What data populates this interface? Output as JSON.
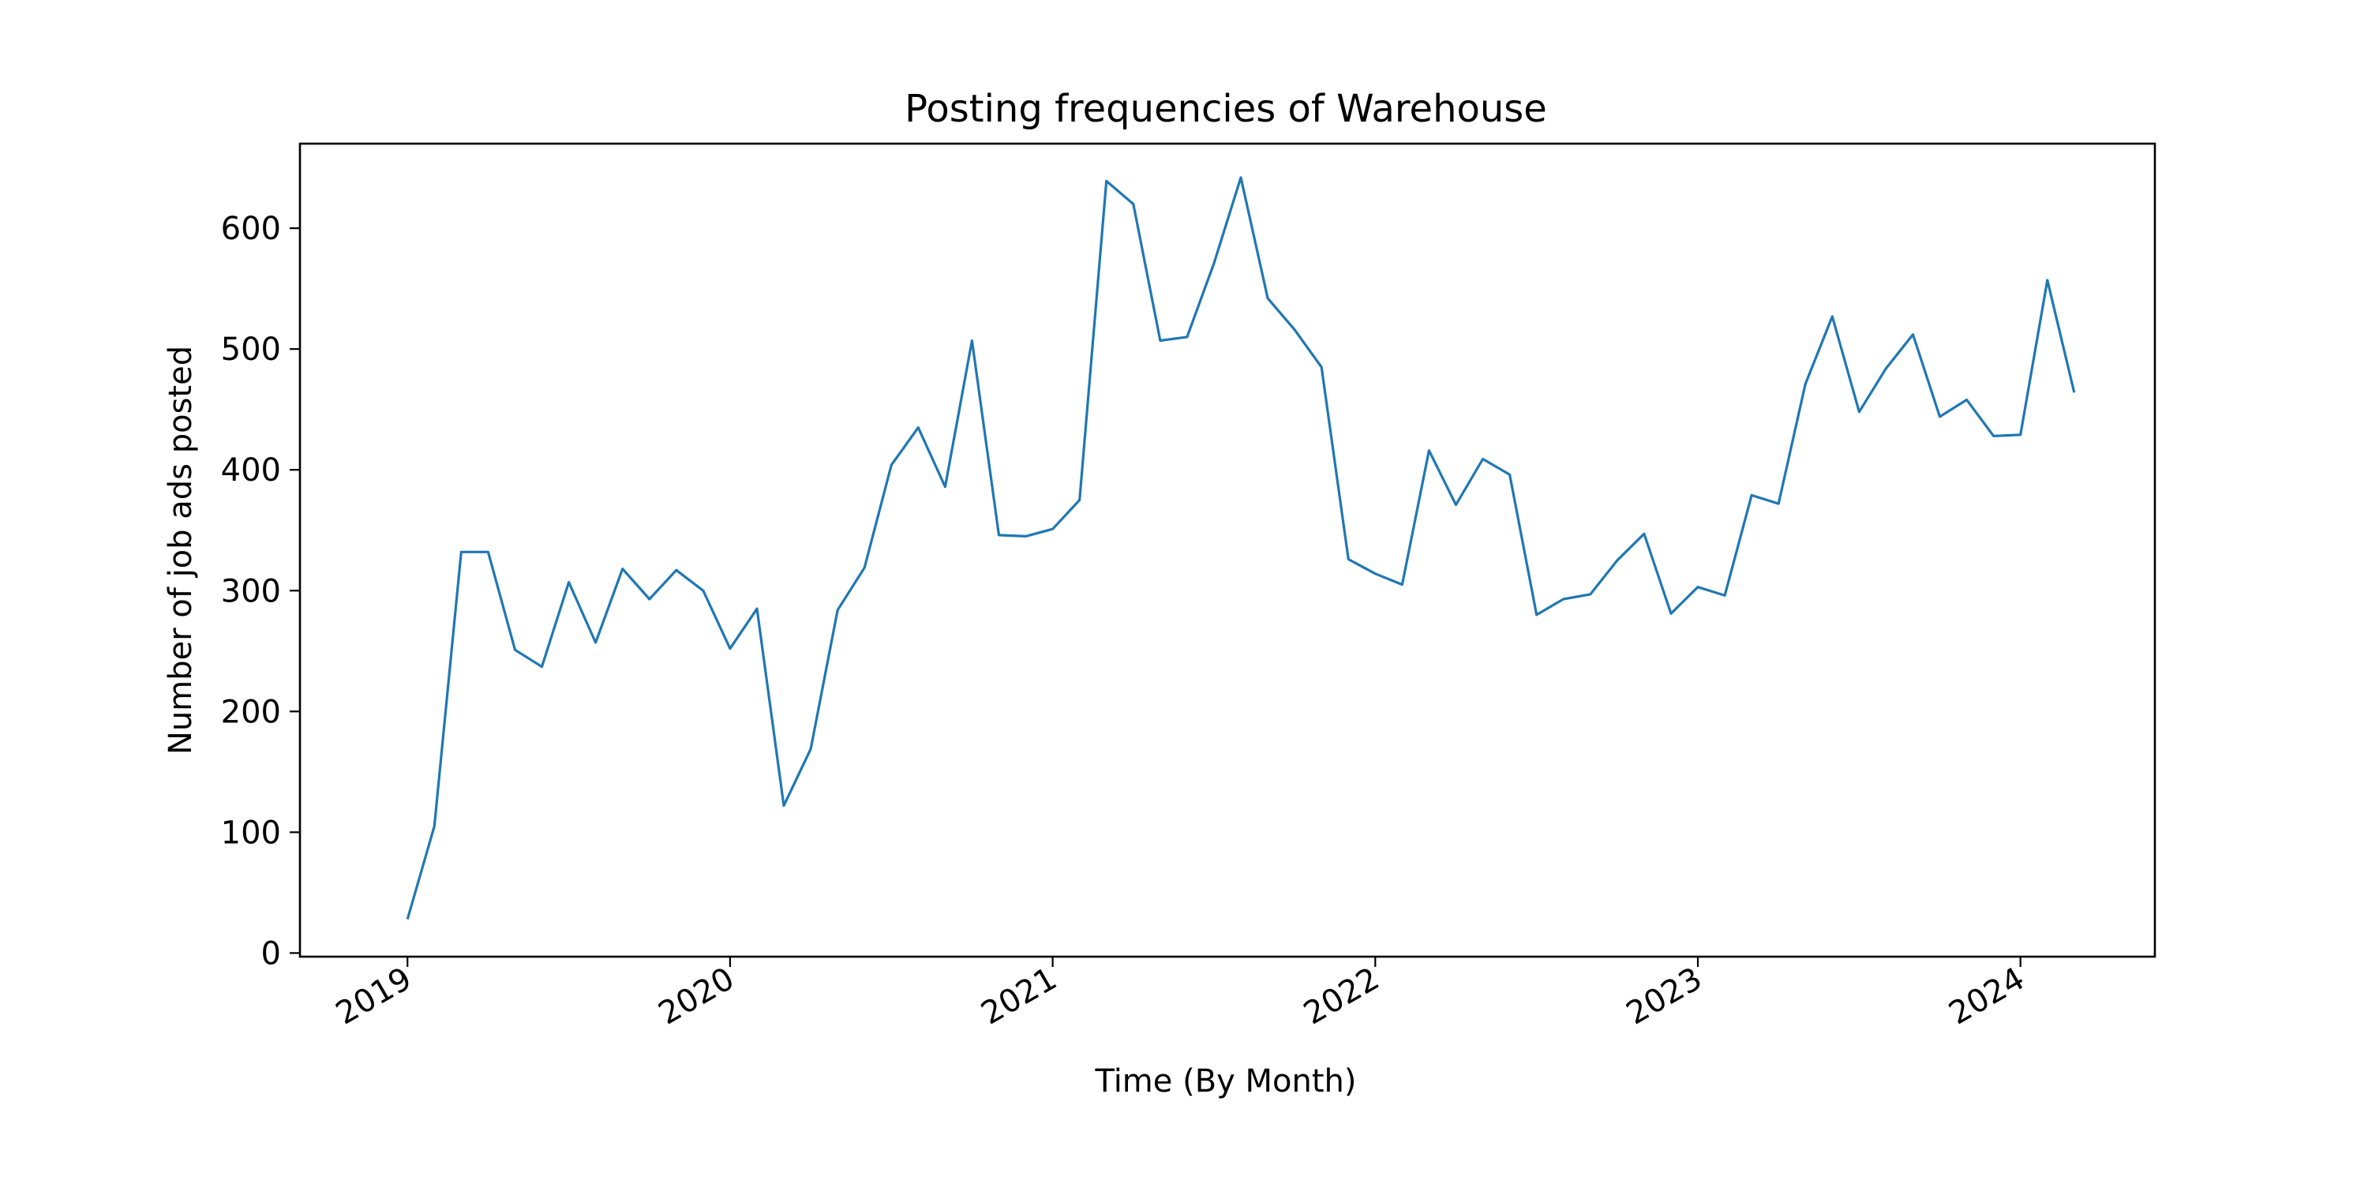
{
  "chart_data": {
    "type": "line",
    "title": "Posting frequencies of Warehouse",
    "xlabel": "Time (By Month)",
    "ylabel": "Number of job ads posted",
    "x_tick_labels": [
      "2019",
      "2020",
      "2021",
      "2022",
      "2023",
      "2024"
    ],
    "y_ticks": [
      0,
      100,
      200,
      300,
      400,
      500,
      600
    ],
    "ylim": [
      -3,
      670
    ],
    "xlim": [
      "2018-09",
      "2024-06"
    ],
    "grid": false,
    "legend": "none",
    "line_color": "#1f77b4",
    "x": [
      "2019-01",
      "2019-02",
      "2019-03",
      "2019-04",
      "2019-05",
      "2019-06",
      "2019-07",
      "2019-08",
      "2019-09",
      "2019-10",
      "2019-11",
      "2019-12",
      "2020-01",
      "2020-02",
      "2020-03",
      "2020-04",
      "2020-05",
      "2020-06",
      "2020-07",
      "2020-08",
      "2020-09",
      "2020-10",
      "2020-11",
      "2020-12",
      "2021-01",
      "2021-02",
      "2021-03",
      "2021-04",
      "2021-05",
      "2021-06",
      "2021-07",
      "2021-08",
      "2021-09",
      "2021-10",
      "2021-11",
      "2021-12",
      "2022-01",
      "2022-02",
      "2022-03",
      "2022-04",
      "2022-05",
      "2022-06",
      "2022-07",
      "2022-08",
      "2022-09",
      "2022-10",
      "2022-11",
      "2022-12",
      "2023-01",
      "2023-02",
      "2023-03",
      "2023-04",
      "2023-05",
      "2023-06",
      "2023-07",
      "2023-08",
      "2023-09",
      "2023-10",
      "2023-11",
      "2023-12",
      "2024-01",
      "2024-02",
      "2024-03"
    ],
    "series": [
      {
        "values": [
          28,
          105,
          332,
          332,
          251,
          237,
          307,
          257,
          318,
          293,
          317,
          300,
          252,
          285,
          122,
          169,
          284,
          319,
          404,
          435,
          386,
          507,
          346,
          345,
          351,
          375,
          639,
          620,
          507,
          510,
          571,
          642,
          542,
          516,
          485,
          326,
          314,
          305,
          416,
          371,
          409,
          396,
          280,
          293,
          297,
          325,
          347,
          281,
          303,
          296,
          379,
          372,
          471,
          527,
          448,
          484,
          512,
          444,
          458,
          428,
          429,
          557,
          464
        ]
      }
    ]
  }
}
